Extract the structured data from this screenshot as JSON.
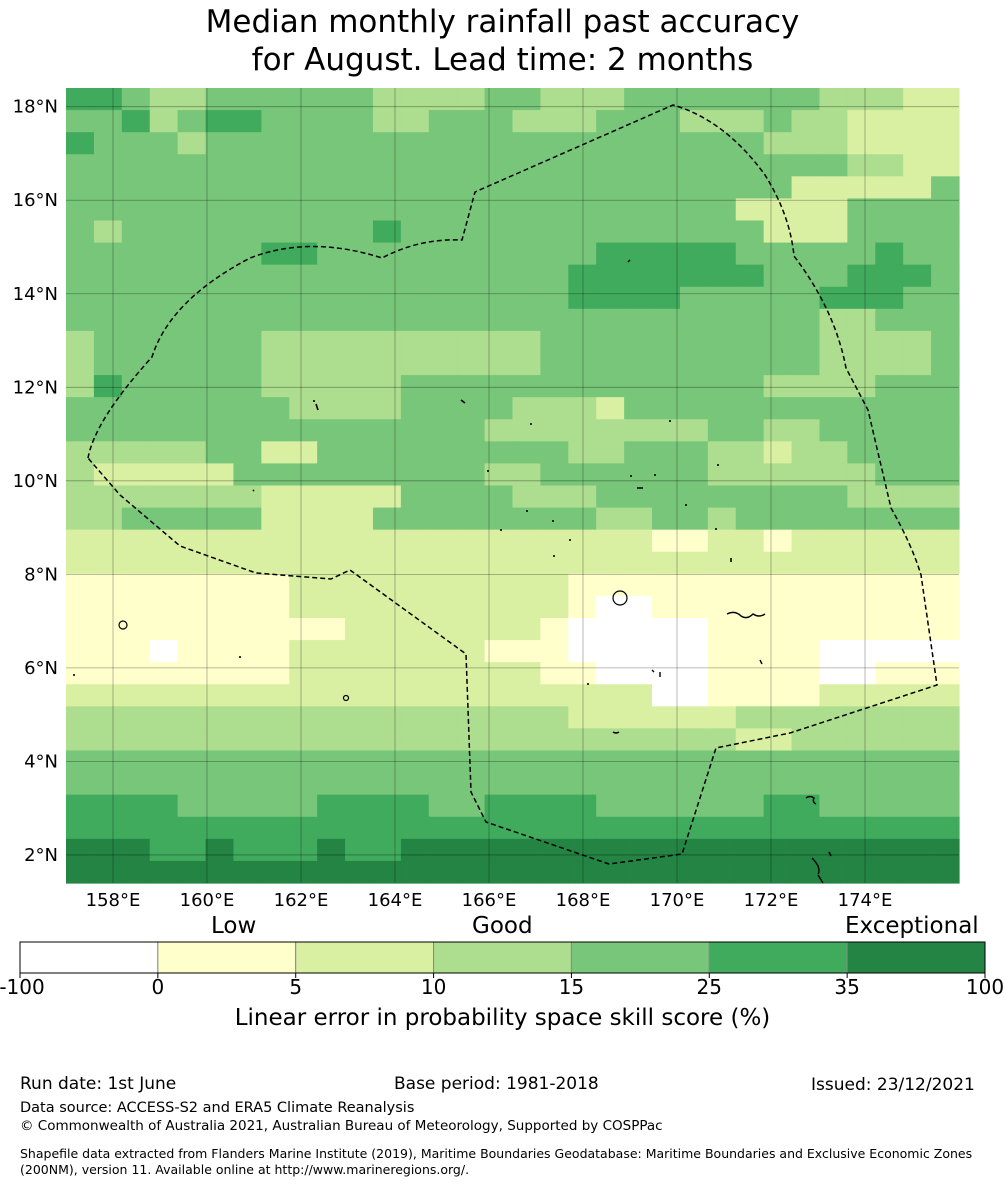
{
  "title": {
    "line1": "Median monthly rainfall past accuracy",
    "line2": "for August. Lead time: 2 months"
  },
  "map": {
    "lat_range": [
      1.4,
      18.4
    ],
    "lon_range": [
      157.0,
      176.0
    ],
    "lat_ticks": [
      "18°N",
      "16°N",
      "14°N",
      "12°N",
      "10°N",
      "8°N",
      "6°N",
      "4°N",
      "2°N"
    ],
    "lon_ticks": [
      "158°E",
      "160°E",
      "162°E",
      "164°E",
      "166°E",
      "168°E",
      "170°E",
      "172°E",
      "174°E"
    ],
    "grid_cell_deg": 0.833,
    "eez_boundary_style": "dashed black",
    "skill_bin_rows_north_to_south": [
      "55433444444333344333444444433322",
      "44534554444334443334443334332222",
      "54443444444444444444444443332222",
      "44444444444444444444444444443322",
      "44444444444444444444444444222224",
      "44444444444444444444444422224444",
      "43444444444544444444444442224444",
      "44444445544444444445555544444544",
      "44444444444444444455555554445554",
      "44444444444444444455554444455544",
      "44444444444444444444444444433444",
      "34444443333333333444444444433334",
      "34444443333333333444444444433334",
      "35444443333344444444444443333444",
      "44444444333344443332444444444444",
      "44444444444444433333333443344444",
      "33333442244444444433444332334444",
      "32222244444444433444444333333444",
      "33333332222244443334444444443333",
      "33444442222444444443344344444444",
      "22222222222222222222211221222222",
      "22222222222222222222222222222222",
      "11111111222222222211111111111111",
      "11111111222222222210011111111111",
      "11111111112222222100000111111111",
      "11101111222222211100000111100000",
      "11111111222222222110000111100111",
      "22222222222222222222200111122222",
      "33333333333333333322222233333333",
      "33333333333333333333333322333333",
      "44444444444444444444444444444444",
      "44444444444444444444444444444444",
      "55554444455554455554444445544444",
      "55555555555555555555555555555555",
      "66655655565566666666666666666666",
      "66666666666666666666666666666666"
    ]
  },
  "colorbar": {
    "category_labels": [
      "Low",
      "Good",
      "Exceptional"
    ],
    "tick_labels": [
      "-100",
      "0",
      "5",
      "10",
      "15",
      "25",
      "35",
      "100"
    ],
    "colors": [
      "#ffffff",
      "#ffffcc",
      "#d9f0a3",
      "#addd8e",
      "#78c679",
      "#41ab5d",
      "#238443"
    ],
    "label": "Linear error in probability space skill score (%)"
  },
  "footer": {
    "run_date": "Run date: 1st June",
    "base_period": "Base period: 1981-2018",
    "issued": "Issued: 23/12/2021",
    "data_source": "Data source: ACCESS-S2 and ERA5 Climate Reanalysis",
    "copyright": "© Commonwealth of Australia 2021, Australian Bureau of Meteorology, Supported by COSPPac",
    "shapefile_note": "Shapefile data extracted from Flanders Marine Institute (2019), Maritime Boundaries Geodatabase: Maritime Boundaries and Exclusive Economic Zones (200NM), version 11. Available online at http://www.marineregions.org/."
  }
}
